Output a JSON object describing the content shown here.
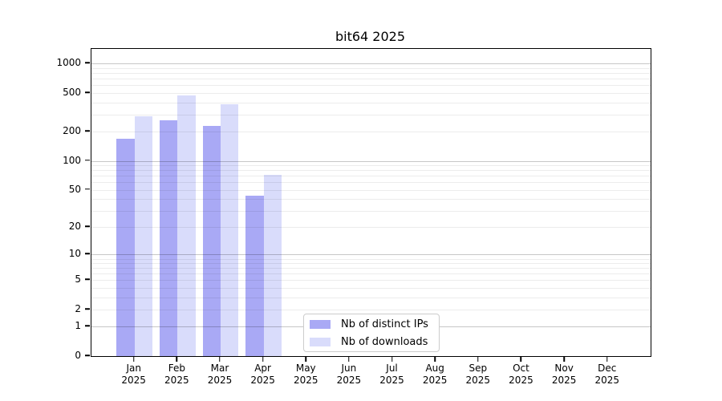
{
  "chart_data": {
    "type": "bar",
    "title": "bit64 2025",
    "categories": [
      "Jan",
      "Feb",
      "Mar",
      "Apr",
      "May",
      "Jun",
      "Jul",
      "Aug",
      "Sep",
      "Oct",
      "Nov",
      "Dec"
    ],
    "category_year": "2025",
    "series": [
      {
        "name": "Nb of distinct IPs",
        "color": "#a9a9f5",
        "values": [
          170,
          262,
          228,
          43,
          null,
          null,
          null,
          null,
          null,
          null,
          null,
          null
        ]
      },
      {
        "name": "Nb of downloads",
        "color": "#d9dcfb",
        "values": [
          290,
          475,
          380,
          71,
          null,
          null,
          null,
          null,
          null,
          null,
          null,
          null
        ]
      }
    ],
    "xlabel": "",
    "ylabel": "",
    "yticks": [
      0,
      1,
      2,
      5,
      10,
      20,
      50,
      100,
      200,
      500,
      1000
    ],
    "yscale": "log1p",
    "ylim": [
      0,
      1400
    ],
    "grid": "horizontal, minor lines at 2-9/20-90/200-900, darker lines at 1/10/100/1000",
    "legend_position": "inside-bottom-center",
    "colors": {
      "axis": "#000000",
      "minor_grid": "#ececec",
      "major_grid": "#c7c7c7",
      "background": "#ffffff",
      "legend_border": "#cccccc"
    }
  }
}
